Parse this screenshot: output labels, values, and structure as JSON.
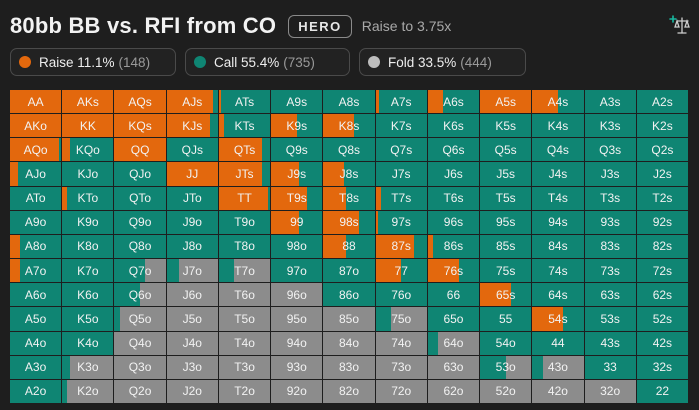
{
  "header": {
    "title": "80bb BB vs. RFI from CO",
    "hero_label": "HERO",
    "action_desc": "Raise to 3.75x"
  },
  "colors": {
    "raise": "#e3680d",
    "call": "#0f8573",
    "fold": "#8c8c8c"
  },
  "stats": [
    {
      "action": "raise",
      "label": "Raise 11.1%",
      "count": "(148)",
      "icon": "orange-dot-icon"
    },
    {
      "action": "call",
      "label": "Call 55.4%",
      "count": "(735)",
      "icon": "teal-dot-icon"
    },
    {
      "action": "fold",
      "label": "Fold 33.5%",
      "count": "(444)",
      "icon": "gray-dot-icon"
    }
  ],
  "toolbar": {
    "compare_icon": "scale-plus-icon"
  },
  "grid": {
    "selected": "AA",
    "rows": [
      [
        {
          "h": "AA",
          "r": 1,
          "c": 0
        },
        {
          "h": "AKs",
          "r": 1,
          "c": 0
        },
        {
          "h": "AQs",
          "r": 1,
          "c": 0
        },
        {
          "h": "AJs",
          "r": 0.9,
          "c": 0.1
        },
        {
          "h": "ATs",
          "r": 0.05,
          "c": 0.95
        },
        {
          "h": "A9s",
          "r": 0,
          "c": 1
        },
        {
          "h": "A8s",
          "r": 0,
          "c": 1
        },
        {
          "h": "A7s",
          "r": 0.06,
          "c": 0.94
        },
        {
          "h": "A6s",
          "r": 0.3,
          "c": 0.7
        },
        {
          "h": "A5s",
          "r": 1,
          "c": 0
        },
        {
          "h": "A4s",
          "r": 0.5,
          "c": 0.5
        },
        {
          "h": "A3s",
          "r": 0,
          "c": 1
        },
        {
          "h": "A2s",
          "r": 0,
          "c": 1
        }
      ],
      [
        {
          "h": "AKo",
          "r": 1,
          "c": 0
        },
        {
          "h": "KK",
          "r": 1,
          "c": 0
        },
        {
          "h": "KQs",
          "r": 1,
          "c": 0
        },
        {
          "h": "KJs",
          "r": 0.85,
          "c": 0.15
        },
        {
          "h": "KTs",
          "r": 0.1,
          "c": 0.9
        },
        {
          "h": "K9s",
          "r": 0.5,
          "c": 0.5
        },
        {
          "h": "K8s",
          "r": 0.6,
          "c": 0.4
        },
        {
          "h": "K7s",
          "r": 0,
          "c": 1
        },
        {
          "h": "K6s",
          "r": 0,
          "c": 1
        },
        {
          "h": "K5s",
          "r": 0,
          "c": 1
        },
        {
          "h": "K4s",
          "r": 0,
          "c": 1
        },
        {
          "h": "K3s",
          "r": 0,
          "c": 1
        },
        {
          "h": "K2s",
          "r": 0,
          "c": 1
        }
      ],
      [
        {
          "h": "AQo",
          "r": 0.95,
          "c": 0.05
        },
        {
          "h": "KQo",
          "r": 0.15,
          "c": 0.85
        },
        {
          "h": "QQ",
          "r": 1,
          "c": 0
        },
        {
          "h": "QJs",
          "r": 0,
          "c": 1
        },
        {
          "h": "QTs",
          "r": 0.85,
          "c": 0.15
        },
        {
          "h": "Q9s",
          "r": 0,
          "c": 1
        },
        {
          "h": "Q8s",
          "r": 0,
          "c": 1
        },
        {
          "h": "Q7s",
          "r": 0,
          "c": 1
        },
        {
          "h": "Q6s",
          "r": 0,
          "c": 1
        },
        {
          "h": "Q5s",
          "r": 0,
          "c": 1
        },
        {
          "h": "Q4s",
          "r": 0,
          "c": 1
        },
        {
          "h": "Q3s",
          "r": 0,
          "c": 1
        },
        {
          "h": "Q2s",
          "r": 0,
          "c": 1
        }
      ],
      [
        {
          "h": "AJo",
          "r": 0.15,
          "c": 0.85
        },
        {
          "h": "KJo",
          "r": 0,
          "c": 1
        },
        {
          "h": "QJo",
          "r": 0,
          "c": 1
        },
        {
          "h": "JJ",
          "r": 1,
          "c": 0
        },
        {
          "h": "JTs",
          "r": 0.85,
          "c": 0.15
        },
        {
          "h": "J9s",
          "r": 0.55,
          "c": 0.45
        },
        {
          "h": "J8s",
          "r": 0.4,
          "c": 0.6
        },
        {
          "h": "J7s",
          "r": 0,
          "c": 1
        },
        {
          "h": "J6s",
          "r": 0,
          "c": 1
        },
        {
          "h": "J5s",
          "r": 0,
          "c": 1
        },
        {
          "h": "J4s",
          "r": 0,
          "c": 1
        },
        {
          "h": "J3s",
          "r": 0,
          "c": 1
        },
        {
          "h": "J2s",
          "r": 0,
          "c": 1
        }
      ],
      [
        {
          "h": "ATo",
          "r": 0,
          "c": 1
        },
        {
          "h": "KTo",
          "r": 0.1,
          "c": 0.9
        },
        {
          "h": "QTo",
          "r": 0,
          "c": 1
        },
        {
          "h": "JTo",
          "r": 0,
          "c": 1
        },
        {
          "h": "TT",
          "r": 0.95,
          "c": 0.05
        },
        {
          "h": "T9s",
          "r": 0.7,
          "c": 0.3
        },
        {
          "h": "T8s",
          "r": 0.45,
          "c": 0.55
        },
        {
          "h": "T7s",
          "r": 0.1,
          "c": 0.9
        },
        {
          "h": "T6s",
          "r": 0,
          "c": 1
        },
        {
          "h": "T5s",
          "r": 0,
          "c": 1
        },
        {
          "h": "T4s",
          "r": 0,
          "c": 1
        },
        {
          "h": "T3s",
          "r": 0,
          "c": 1
        },
        {
          "h": "T2s",
          "r": 0,
          "c": 1
        }
      ],
      [
        {
          "h": "A9o",
          "r": 0,
          "c": 1
        },
        {
          "h": "K9o",
          "r": 0,
          "c": 1
        },
        {
          "h": "Q9o",
          "r": 0,
          "c": 1
        },
        {
          "h": "J9o",
          "r": 0,
          "c": 1
        },
        {
          "h": "T9o",
          "r": 0,
          "c": 1
        },
        {
          "h": "99",
          "r": 0.55,
          "c": 0.45
        },
        {
          "h": "98s",
          "r": 0.7,
          "c": 0.3
        },
        {
          "h": "97s",
          "r": 0.05,
          "c": 0.95
        },
        {
          "h": "96s",
          "r": 0,
          "c": 1
        },
        {
          "h": "95s",
          "r": 0,
          "c": 1
        },
        {
          "h": "94s",
          "r": 0,
          "c": 1
        },
        {
          "h": "93s",
          "r": 0,
          "c": 1
        },
        {
          "h": "92s",
          "r": 0,
          "c": 1
        }
      ],
      [
        {
          "h": "A8o",
          "r": 0.2,
          "c": 0.8
        },
        {
          "h": "K8o",
          "r": 0,
          "c": 1
        },
        {
          "h": "Q8o",
          "r": 0,
          "c": 1
        },
        {
          "h": "J8o",
          "r": 0,
          "c": 1
        },
        {
          "h": "T8o",
          "r": 0,
          "c": 1
        },
        {
          "h": "98o",
          "r": 0,
          "c": 1
        },
        {
          "h": "88",
          "r": 0.45,
          "c": 0.55
        },
        {
          "h": "87s",
          "r": 0.75,
          "c": 0.25
        },
        {
          "h": "86s",
          "r": 0.1,
          "c": 0.9
        },
        {
          "h": "85s",
          "r": 0,
          "c": 1
        },
        {
          "h": "84s",
          "r": 0,
          "c": 1
        },
        {
          "h": "83s",
          "r": 0,
          "c": 1
        },
        {
          "h": "82s",
          "r": 0,
          "c": 1
        }
      ],
      [
        {
          "h": "A7o",
          "r": 0.2,
          "c": 0.8
        },
        {
          "h": "K7o",
          "r": 0,
          "c": 1
        },
        {
          "h": "Q7o",
          "r": 0,
          "c": 0.6
        },
        {
          "h": "J7o",
          "r": 0,
          "c": 0.25
        },
        {
          "h": "T7o",
          "r": 0,
          "c": 0.3
        },
        {
          "h": "97o",
          "r": 0,
          "c": 1
        },
        {
          "h": "87o",
          "r": 0,
          "c": 1
        },
        {
          "h": "77",
          "r": 0.5,
          "c": 0.5
        },
        {
          "h": "76s",
          "r": 0.6,
          "c": 0.4
        },
        {
          "h": "75s",
          "r": 0,
          "c": 1
        },
        {
          "h": "74s",
          "r": 0,
          "c": 1
        },
        {
          "h": "73s",
          "r": 0,
          "c": 1
        },
        {
          "h": "72s",
          "r": 0,
          "c": 1
        }
      ],
      [
        {
          "h": "A6o",
          "r": 0,
          "c": 1
        },
        {
          "h": "K6o",
          "r": 0,
          "c": 1
        },
        {
          "h": "Q6o",
          "r": 0,
          "c": 0.5
        },
        {
          "h": "J6o",
          "r": 0,
          "c": 0
        },
        {
          "h": "T6o",
          "r": 0,
          "c": 0
        },
        {
          "h": "96o",
          "r": 0,
          "c": 0
        },
        {
          "h": "86o",
          "r": 0,
          "c": 1
        },
        {
          "h": "76o",
          "r": 0,
          "c": 1
        },
        {
          "h": "66",
          "r": 0,
          "c": 1
        },
        {
          "h": "65s",
          "r": 0.6,
          "c": 0.4
        },
        {
          "h": "64s",
          "r": 0,
          "c": 1
        },
        {
          "h": "63s",
          "r": 0,
          "c": 1
        },
        {
          "h": "62s",
          "r": 0,
          "c": 1
        }
      ],
      [
        {
          "h": "A5o",
          "r": 0,
          "c": 1
        },
        {
          "h": "K5o",
          "r": 0,
          "c": 1
        },
        {
          "h": "Q5o",
          "r": 0,
          "c": 0.1
        },
        {
          "h": "J5o",
          "r": 0,
          "c": 0
        },
        {
          "h": "T5o",
          "r": 0,
          "c": 0
        },
        {
          "h": "95o",
          "r": 0,
          "c": 0
        },
        {
          "h": "85o",
          "r": 0,
          "c": 0
        },
        {
          "h": "75o",
          "r": 0,
          "c": 0.3
        },
        {
          "h": "65o",
          "r": 0,
          "c": 1
        },
        {
          "h": "55",
          "r": 0,
          "c": 1
        },
        {
          "h": "54s",
          "r": 0.6,
          "c": 0.4
        },
        {
          "h": "53s",
          "r": 0,
          "c": 1
        },
        {
          "h": "52s",
          "r": 0,
          "c": 1
        }
      ],
      [
        {
          "h": "A4o",
          "r": 0,
          "c": 1
        },
        {
          "h": "K4o",
          "r": 0,
          "c": 1
        },
        {
          "h": "Q4o",
          "r": 0,
          "c": 0
        },
        {
          "h": "J4o",
          "r": 0,
          "c": 0
        },
        {
          "h": "T4o",
          "r": 0,
          "c": 0
        },
        {
          "h": "94o",
          "r": 0,
          "c": 0
        },
        {
          "h": "84o",
          "r": 0,
          "c": 0
        },
        {
          "h": "74o",
          "r": 0,
          "c": 0
        },
        {
          "h": "64o",
          "r": 0,
          "c": 0.2
        },
        {
          "h": "54o",
          "r": 0,
          "c": 1
        },
        {
          "h": "44",
          "r": 0,
          "c": 1
        },
        {
          "h": "43s",
          "r": 0,
          "c": 1
        },
        {
          "h": "42s",
          "r": 0,
          "c": 1
        }
      ],
      [
        {
          "h": "A3o",
          "r": 0,
          "c": 1
        },
        {
          "h": "K3o",
          "r": 0,
          "c": 0.15
        },
        {
          "h": "Q3o",
          "r": 0,
          "c": 0
        },
        {
          "h": "J3o",
          "r": 0,
          "c": 0
        },
        {
          "h": "T3o",
          "r": 0,
          "c": 0
        },
        {
          "h": "93o",
          "r": 0,
          "c": 0
        },
        {
          "h": "83o",
          "r": 0,
          "c": 0
        },
        {
          "h": "73o",
          "r": 0,
          "c": 0
        },
        {
          "h": "63o",
          "r": 0,
          "c": 0
        },
        {
          "h": "53o",
          "r": 0,
          "c": 0.5
        },
        {
          "h": "43o",
          "r": 0,
          "c": 0.2
        },
        {
          "h": "33",
          "r": 0,
          "c": 1
        },
        {
          "h": "32s",
          "r": 0,
          "c": 1
        }
      ],
      [
        {
          "h": "A2o",
          "r": 0,
          "c": 1
        },
        {
          "h": "K2o",
          "r": 0,
          "c": 0.1
        },
        {
          "h": "Q2o",
          "r": 0,
          "c": 0
        },
        {
          "h": "J2o",
          "r": 0,
          "c": 0
        },
        {
          "h": "T2o",
          "r": 0,
          "c": 0
        },
        {
          "h": "92o",
          "r": 0,
          "c": 0
        },
        {
          "h": "82o",
          "r": 0,
          "c": 0
        },
        {
          "h": "72o",
          "r": 0,
          "c": 0
        },
        {
          "h": "62o",
          "r": 0,
          "c": 0
        },
        {
          "h": "52o",
          "r": 0,
          "c": 0
        },
        {
          "h": "42o",
          "r": 0,
          "c": 0
        },
        {
          "h": "32o",
          "r": 0,
          "c": 0
        },
        {
          "h": "22",
          "r": 0,
          "c": 1
        }
      ]
    ]
  }
}
